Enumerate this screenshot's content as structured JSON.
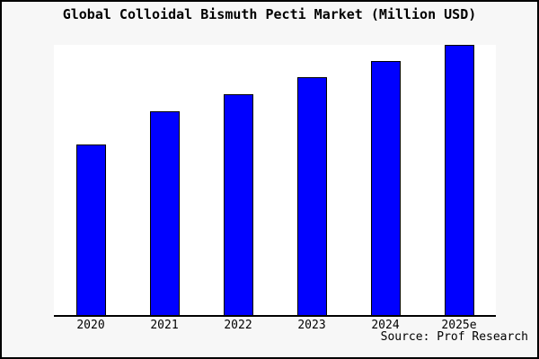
{
  "title": "Global Colloidal Bismuth Pecti Market (Million USD)",
  "source_label": "Source: Prof Research",
  "chart_data": {
    "type": "bar",
    "title": "Global Colloidal Bismuth Pecti Market (Million USD)",
    "categories": [
      "2020",
      "2021",
      "2022",
      "2023",
      "2024",
      "2025e"
    ],
    "values": [
      63,
      75.3,
      81.7,
      88,
      94,
      100
    ],
    "value_note": "no y-axis or data labels shown; values are relative heights with 2025e = 100",
    "xlabel": "",
    "ylabel": "",
    "ylim": [
      0,
      100
    ],
    "grid": false,
    "legend": "none",
    "bar_color": "#0000FF",
    "bar_edge_color": "#000000",
    "plot_background": "#FFFFFF",
    "canvas_background": "#F7F7F7",
    "source": "Source: Prof Research"
  }
}
